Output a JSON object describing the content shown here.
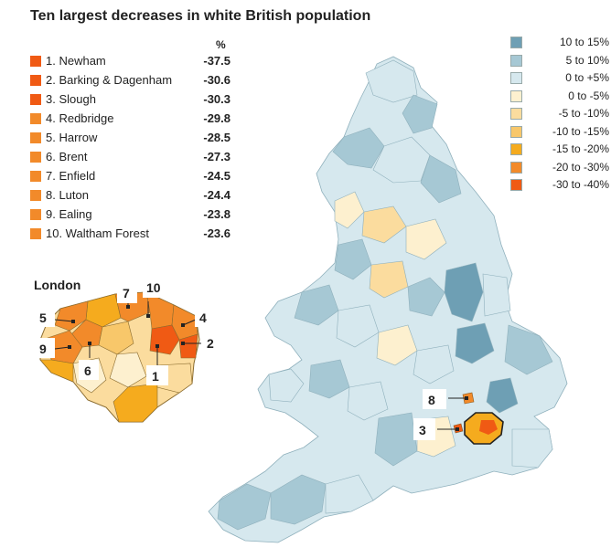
{
  "title": "Ten largest decreases in white British population",
  "pct_header": "%",
  "ranking": [
    {
      "label": "1. Newham",
      "value": "-37.5",
      "color": "#f05a14"
    },
    {
      "label": "2. Barking & Dagenham",
      "value": "-30.6",
      "color": "#f05a14"
    },
    {
      "label": "3. Slough",
      "value": "-30.3",
      "color": "#f05a14"
    },
    {
      "label": "4. Redbridge",
      "value": "-29.8",
      "color": "#f28a2a"
    },
    {
      "label": "5. Harrow",
      "value": "-28.5",
      "color": "#f28a2a"
    },
    {
      "label": "6. Brent",
      "value": "-27.3",
      "color": "#f28a2a"
    },
    {
      "label": "7. Enfield",
      "value": "-24.5",
      "color": "#f28a2a"
    },
    {
      "label": "8. Luton",
      "value": "-24.4",
      "color": "#f28a2a"
    },
    {
      "label": "9. Ealing",
      "value": "-23.8",
      "color": "#f28a2a"
    },
    {
      "label": "10. Waltham Forest",
      "value": "-23.6",
      "color": "#f28a2a"
    }
  ],
  "legend": [
    {
      "label": "10 to 15%",
      "color": "#6e9fb4"
    },
    {
      "label": "5 to 10%",
      "color": "#a6c8d4"
    },
    {
      "label": "0 to +5%",
      "color": "#d6e8ee"
    },
    {
      "label": "0 to -5%",
      "color": "#fdf0cf"
    },
    {
      "label": "-5 to -10%",
      "color": "#fbdc9e"
    },
    {
      "label": "-10 to -15%",
      "color": "#f8c76a"
    },
    {
      "label": "-15 to -20%",
      "color": "#f5ab1e"
    },
    {
      "label": "-20 to -30%",
      "color": "#f28a2a"
    },
    {
      "label": "-30 to -40%",
      "color": "#f05a14"
    }
  ],
  "london_title": "London",
  "callouts": [
    "1",
    "2",
    "3",
    "4",
    "5",
    "6",
    "7",
    "8",
    "9",
    "10"
  ]
}
